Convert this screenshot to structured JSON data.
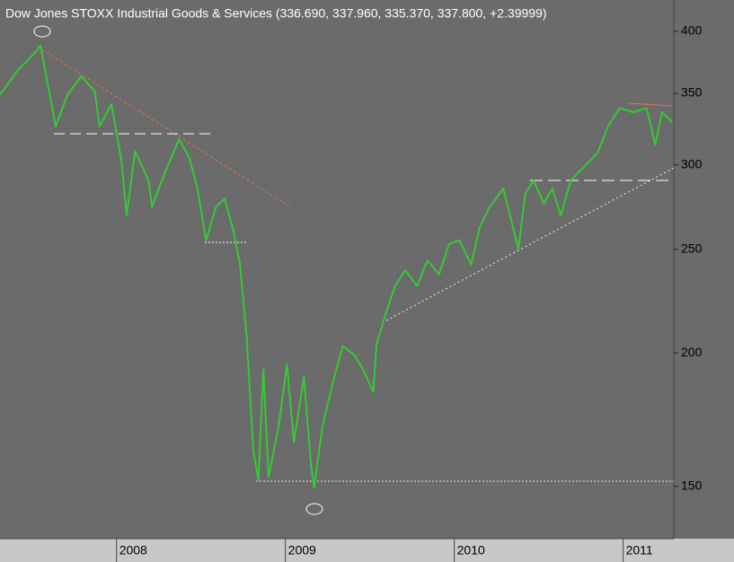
{
  "chart_data": {
    "type": "line",
    "title": "Dow Jones STOXX Industrial Goods & Services (336.690, 337.960, 335.370, 337.800, +2.39999)",
    "log_scale": true,
    "xlim": [
      2007.31,
      2011.3
    ],
    "xticks": [
      2008,
      2009,
      2010,
      2011
    ],
    "ylim": [
      134,
      428
    ],
    "yticks": [
      150,
      200,
      250,
      300,
      350,
      400
    ],
    "series": [
      {
        "color": "#33cc33",
        "x": [
          2007.31,
          2007.41,
          2007.53,
          2007.55,
          2007.6,
          2007.64,
          2007.71,
          2007.79,
          2007.87,
          2007.9,
          2007.97,
          2008.03,
          2008.06,
          2008.11,
          2008.19,
          2008.21,
          2008.29,
          2008.37,
          2008.43,
          2008.48,
          2008.53,
          2008.59,
          2008.64,
          2008.69,
          2008.73,
          2008.77,
          2008.81,
          2008.84,
          2008.87,
          2008.9,
          2008.96,
          2009.01,
          2009.05,
          2009.11,
          2009.15,
          2009.17,
          2009.22,
          2009.29,
          2009.34,
          2009.41,
          2009.46,
          2009.52,
          2009.54,
          2009.6,
          2009.65,
          2009.71,
          2009.78,
          2009.84,
          2009.91,
          2009.97,
          2010.03,
          2010.1,
          2010.15,
          2010.21,
          2010.29,
          2010.33,
          2010.38,
          2010.42,
          2010.47,
          2010.53,
          2010.58,
          2010.63,
          2010.69,
          2010.77,
          2010.85,
          2010.91,
          2010.98,
          2011.06,
          2011.14,
          2011.19,
          2011.23,
          2011.29
        ],
        "values": [
          349,
          367,
          384,
          388,
          352,
          326,
          349,
          363,
          352,
          326,
          342,
          302,
          269,
          309,
          290,
          274,
          296,
          317,
          305,
          285,
          255,
          274,
          279,
          261,
          243,
          208,
          162,
          152,
          193,
          153,
          171,
          195,
          165,
          190,
          158,
          149.5,
          171,
          190,
          203,
          199,
          193,
          184,
          204,
          219,
          231,
          239,
          231,
          244,
          237,
          253,
          255,
          242,
          262,
          274,
          285,
          269,
          250,
          282,
          290,
          276,
          285,
          269,
          290,
          299,
          308,
          326,
          339,
          336,
          339,
          313,
          336,
          329
        ]
      }
    ]
  }
}
